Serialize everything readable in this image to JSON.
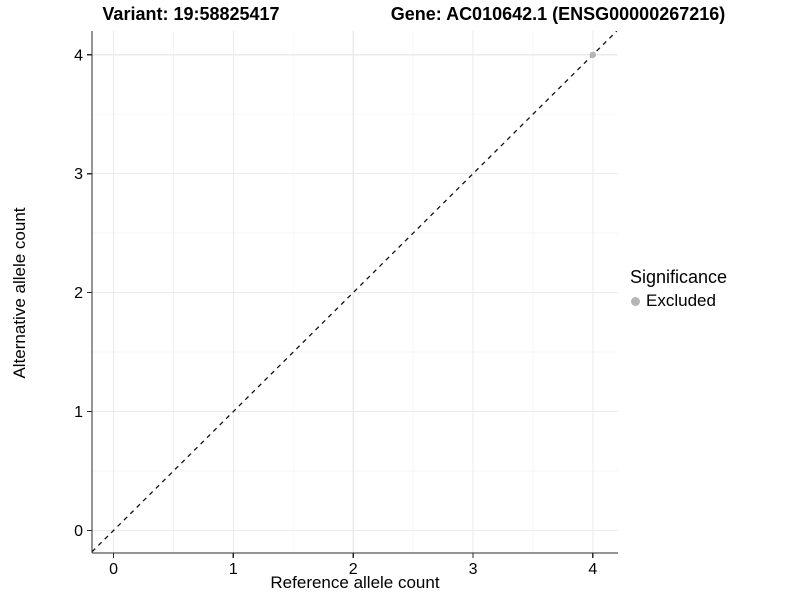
{
  "page": {
    "background": "#ffffff"
  },
  "chart_data": {
    "type": "scatter",
    "titles": {
      "left": "Variant: 19:58825417",
      "right": "Gene: AC010642.1 (ENSG00000267216)"
    },
    "xlabel": "Reference allele count",
    "ylabel": "Alternative allele count",
    "xlim": [
      -0.18,
      4.21
    ],
    "ylim": [
      -0.19,
      4.2
    ],
    "xticks": [
      0,
      1,
      2,
      3,
      4
    ],
    "yticks": [
      0,
      1,
      2,
      3,
      4
    ],
    "minor_step": 0.5,
    "grid": true,
    "series": [
      {
        "name": "Excluded",
        "color": "#b5b5b5",
        "points": [
          {
            "x": 4,
            "y": 4
          }
        ]
      }
    ],
    "reference_line": {
      "type": "identity",
      "slope": 1,
      "intercept": 0,
      "style": "dashed",
      "color": "#111111"
    },
    "legend": {
      "title": "Significance",
      "position": "right",
      "entries": [
        {
          "label": "Excluded",
          "color": "#b5b5b5"
        }
      ]
    },
    "colors": {
      "grid_major": "#ebebeb",
      "grid_minor": "#f4f4f4",
      "axis_line": "#2b2b2b",
      "tick_mark": "#2b2b2b",
      "tick_text": "#000000"
    }
  }
}
